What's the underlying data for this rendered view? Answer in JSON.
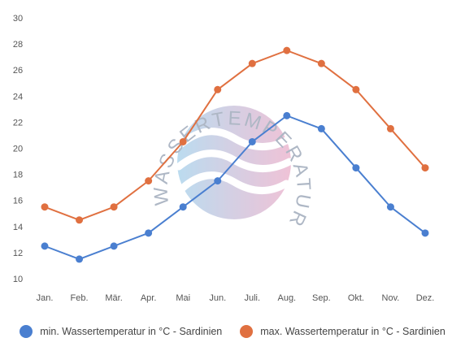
{
  "watermark": {
    "text": "WASSERTEMPERATUR.ORG"
  },
  "chart_data": {
    "type": "line",
    "categories": [
      "Jan.",
      "Feb.",
      "Mär.",
      "Apr.",
      "Mai",
      "Jun.",
      "Juli.",
      "Aug.",
      "Sep.",
      "Okt.",
      "Nov.",
      "Dez."
    ],
    "series": [
      {
        "name": "min. Wassertemperatur in °C - Sardinien",
        "color": "#4a7fd0",
        "values": [
          12.5,
          11.5,
          12.5,
          13.5,
          15.5,
          17.5,
          20.5,
          22.5,
          21.5,
          18.5,
          15.5,
          13.5
        ]
      },
      {
        "name": "max. Wassertemperatur in °C - Sardinien",
        "color": "#e07040",
        "values": [
          15.5,
          14.5,
          15.5,
          17.5,
          20.5,
          24.5,
          26.5,
          27.5,
          26.5,
          24.5,
          21.5,
          18.5
        ]
      }
    ],
    "yticks": [
      10,
      12,
      14,
      16,
      18,
      20,
      22,
      24,
      26,
      28,
      30
    ],
    "ylim": [
      10,
      30
    ],
    "grid": false,
    "legend_position": "bottom"
  }
}
